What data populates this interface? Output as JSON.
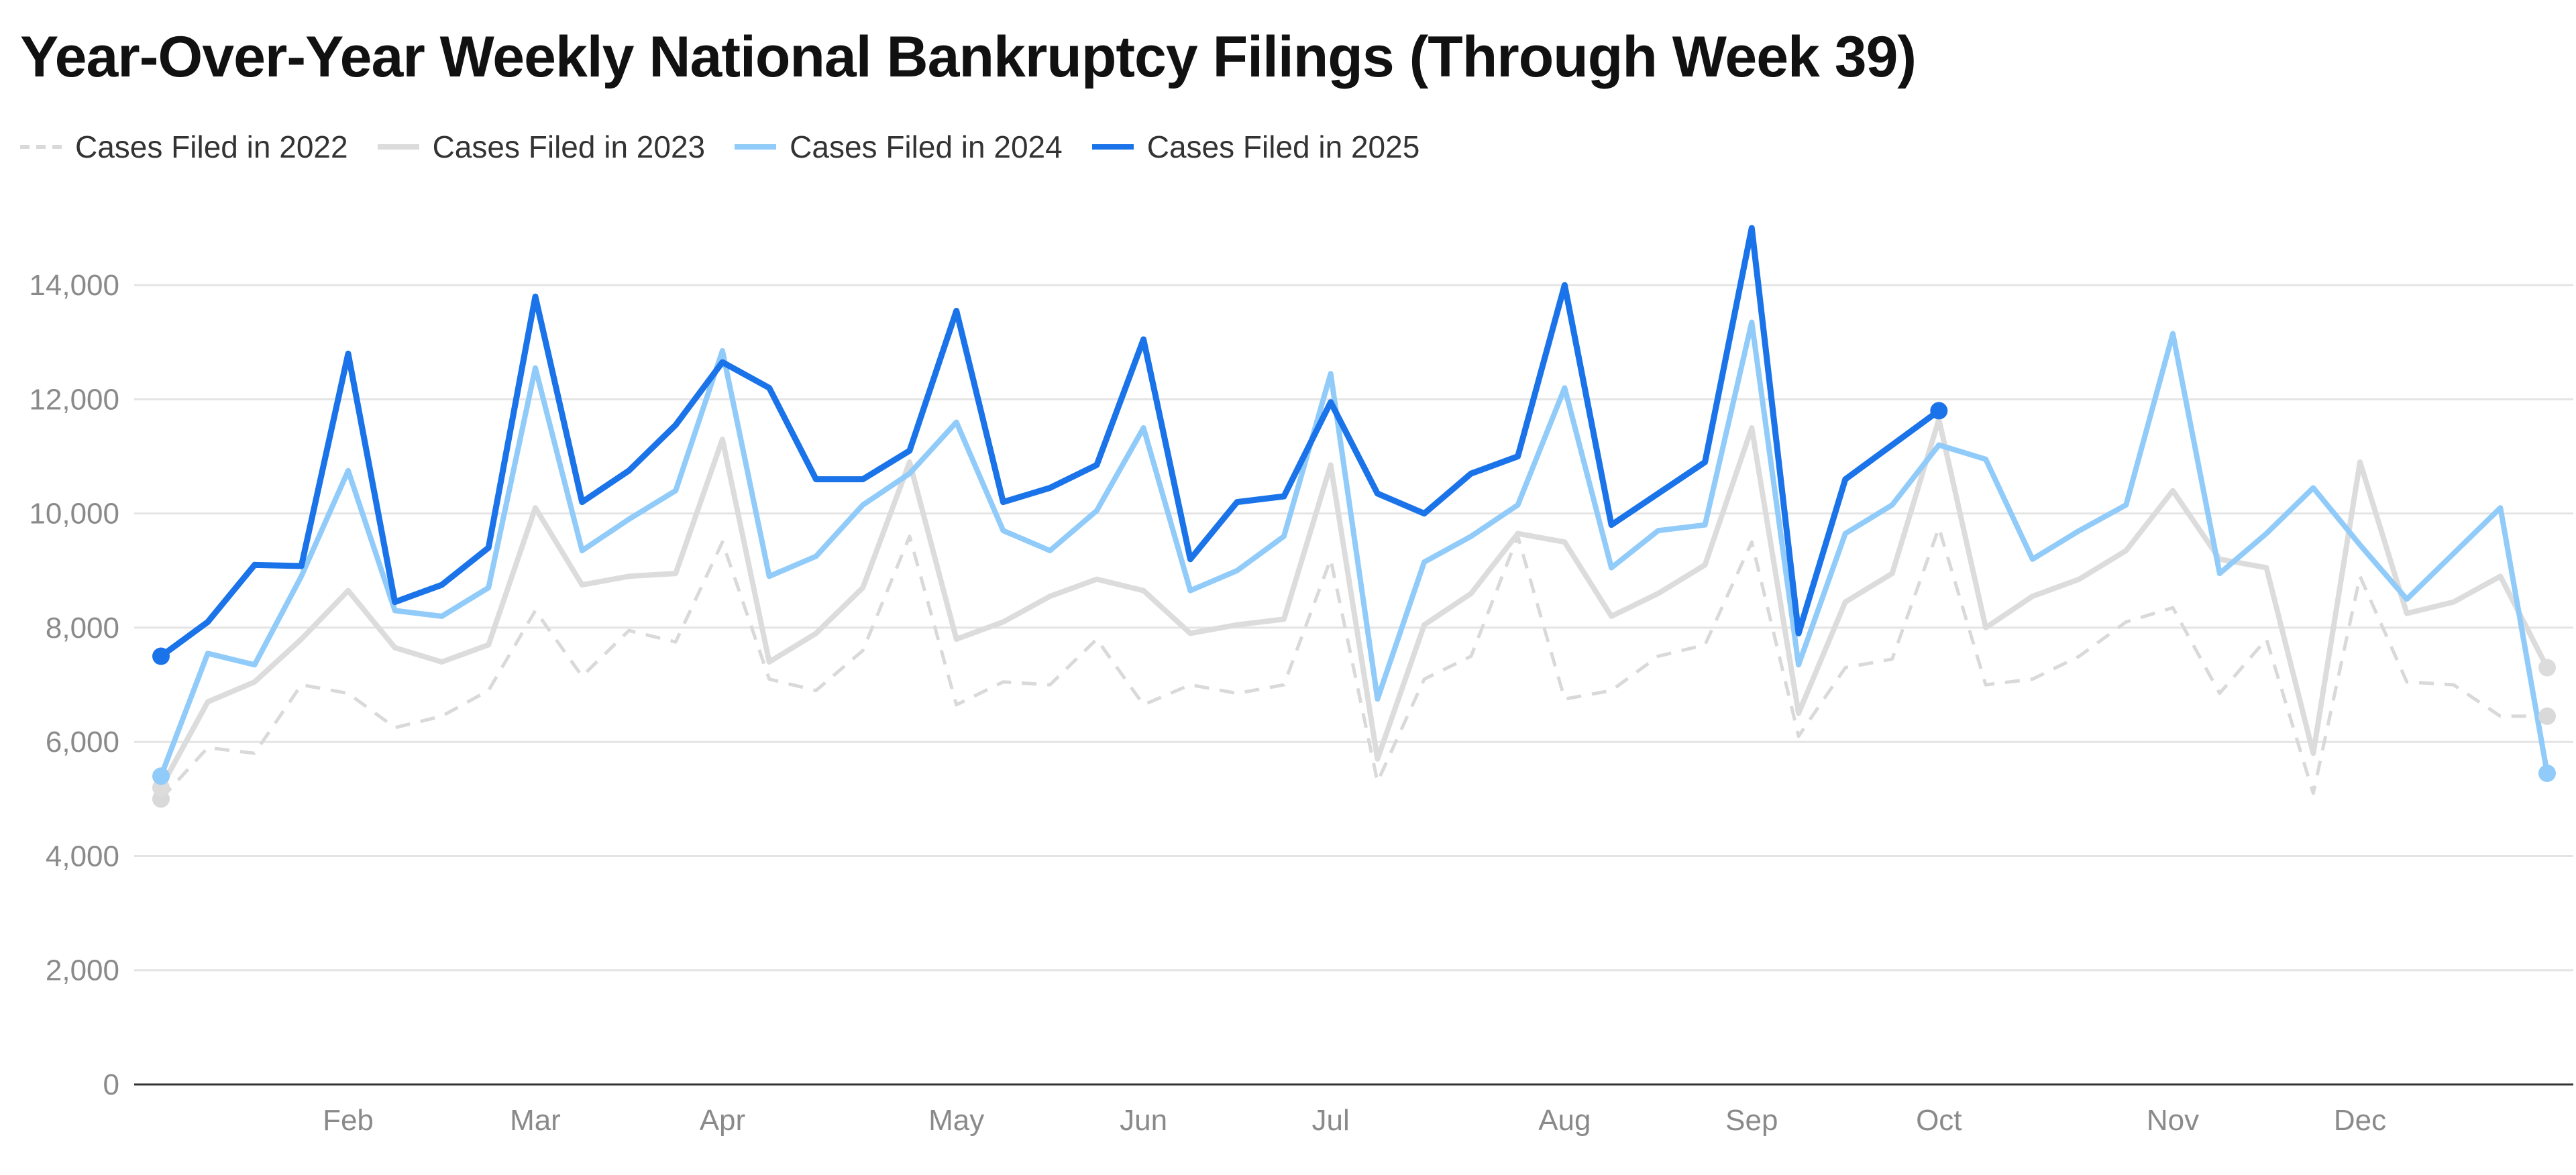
{
  "chart_data": {
    "type": "line",
    "title": "Year-Over-Year Weekly National Bankruptcy Filings (Through Week 39)",
    "xlabel": "",
    "ylabel": "",
    "ylim": [
      0,
      15000
    ],
    "y_ticks": [
      0,
      2000,
      4000,
      6000,
      8000,
      10000,
      12000,
      14000
    ],
    "y_tick_labels": [
      "0",
      "2,000",
      "4,000",
      "6,000",
      "8,000",
      "10,000",
      "12,000",
      "14,000"
    ],
    "x_unit": "week",
    "x_range": [
      1,
      52
    ],
    "x_ticks": [
      5,
      9,
      13,
      18,
      22,
      26,
      31,
      35,
      39,
      44,
      48
    ],
    "x_tick_labels": [
      "Feb",
      "Mar",
      "Apr",
      "May",
      "Jun",
      "Jul",
      "Aug",
      "Sep",
      "Oct",
      "Nov",
      "Dec"
    ],
    "grid": true,
    "legend_position": "top-left",
    "series": [
      {
        "name": "Cases Filed in 2022",
        "color": "#d9d9d9",
        "style": "dashed",
        "values": [
          5000,
          5900,
          5800,
          7000,
          6850,
          6250,
          6450,
          6900,
          8300,
          7150,
          7950,
          7750,
          9500,
          7100,
          6900,
          7600,
          9600,
          6650,
          7050,
          7000,
          7800,
          6650,
          7000,
          6850,
          7000,
          9200,
          5300,
          7100,
          7500,
          9600,
          6750,
          6900,
          7500,
          7700,
          9500,
          6100,
          7300,
          7450,
          9750,
          7000,
          7100,
          7500,
          8100,
          8350,
          6850,
          7800,
          5100,
          8900,
          7050,
          7000,
          6450,
          6450
        ]
      },
      {
        "name": "Cases Filed in 2023",
        "color": "#dcdcdc",
        "style": "solid",
        "values": [
          5200,
          6700,
          7050,
          7800,
          8650,
          7650,
          7400,
          7700,
          10100,
          8750,
          8900,
          8950,
          11300,
          7400,
          7900,
          8700,
          10900,
          7800,
          8100,
          8550,
          8850,
          8650,
          7900,
          8050,
          8150,
          10850,
          5700,
          8050,
          8600,
          9650,
          9500,
          8200,
          8600,
          9100,
          11500,
          6500,
          8450,
          8950,
          11650,
          8000,
          8550,
          8850,
          9350,
          10400,
          9200,
          9050,
          5800,
          10900,
          8250,
          8450,
          8900,
          7300
        ]
      },
      {
        "name": "Cases Filed in 2024",
        "color": "#90cbf9",
        "style": "solid",
        "values": [
          5400,
          7550,
          7350,
          8900,
          10750,
          8300,
          8200,
          8700,
          12550,
          9350,
          9900,
          10400,
          12850,
          8900,
          9250,
          10150,
          10700,
          11600,
          9700,
          9350,
          10050,
          11500,
          8650,
          9000,
          9600,
          12450,
          6750,
          9150,
          9600,
          10150,
          12200,
          9050,
          9700,
          9800,
          13350,
          7350,
          9650,
          10150,
          11200,
          10950,
          9200,
          9700,
          10150,
          13150,
          8950,
          9650,
          10450,
          9450,
          8500,
          9300,
          10100,
          5450
        ]
      },
      {
        "name": "Cases Filed in 2025",
        "color": "#1a73e8",
        "style": "solid",
        "values": [
          7500,
          8100,
          9100,
          9080,
          12800,
          8450,
          8750,
          9400,
          13800,
          10200,
          10750,
          11550,
          12650,
          12200,
          10600,
          10600,
          11100,
          13550,
          10200,
          10450,
          10850,
          13050,
          9200,
          10200,
          10300,
          11950,
          10350,
          10000,
          10700,
          11000,
          14000,
          9800,
          10350,
          10900,
          15000,
          7900,
          10600,
          11200,
          11800
        ]
      }
    ]
  }
}
